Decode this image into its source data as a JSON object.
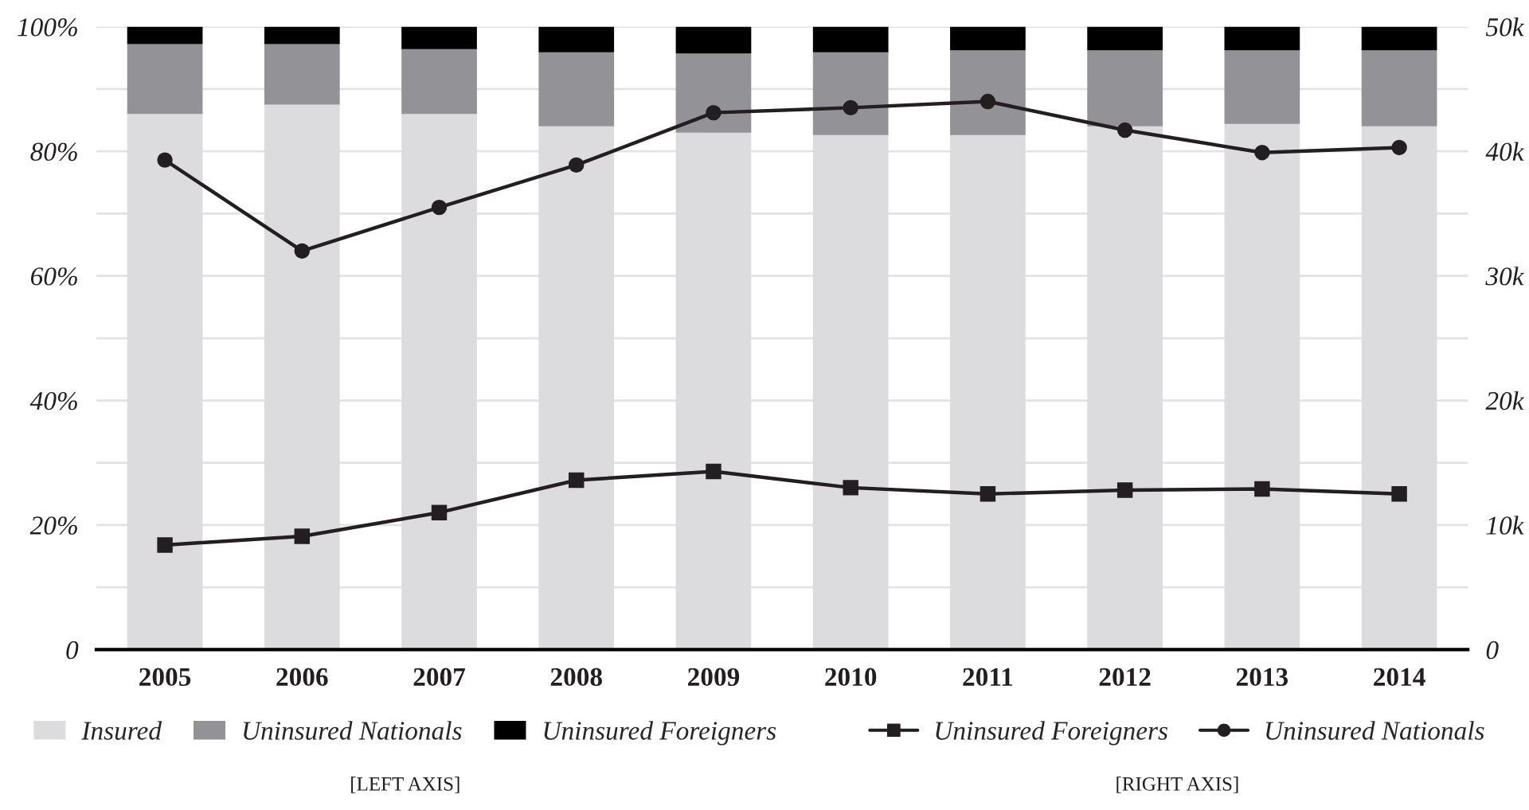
{
  "chart_data": {
    "type": "bar",
    "stacked": true,
    "categories": [
      "2005",
      "2006",
      "2007",
      "2008",
      "2009",
      "2010",
      "2011",
      "2012",
      "2013",
      "2014"
    ],
    "series": [
      {
        "name": "Insured",
        "color": "#dcdcdf",
        "values": [
          86,
          87.5,
          86,
          84,
          83,
          82.6,
          82.6,
          84,
          84.4,
          84
        ]
      },
      {
        "name": "Uninsured Nationals",
        "color": "#939397",
        "values": [
          11.2,
          9.7,
          10.4,
          11.9,
          12.7,
          13.3,
          13.6,
          12.2,
          11.8,
          12.2
        ]
      },
      {
        "name": "Uninsured Foreigners",
        "color": "#000000",
        "values": [
          2.8,
          2.8,
          3.6,
          4.1,
          4.3,
          4.1,
          3.8,
          3.8,
          3.8,
          3.8
        ]
      },
      {
        "name": "Uninsured Foreigners",
        "type": "line",
        "axis": "y2",
        "marker": "square",
        "color": "#231f20",
        "values": [
          8400,
          9100,
          11000,
          13600,
          14300,
          13000,
          12500,
          12800,
          12900,
          12500
        ]
      },
      {
        "name": "Uninsured Nationals",
        "type": "line",
        "axis": "y2",
        "marker": "circle",
        "color": "#231f20",
        "values": [
          39300,
          32000,
          35500,
          38900,
          43100,
          43500,
          44000,
          41700,
          39900,
          40300
        ]
      }
    ],
    "ylim": [
      0,
      100
    ],
    "yticks": [
      {
        "value": 0,
        "label": "0"
      },
      {
        "value": 10,
        "label": null
      },
      {
        "value": 20,
        "label": "20%"
      },
      {
        "value": 30,
        "label": null
      },
      {
        "value": 40,
        "label": "40%"
      },
      {
        "value": 50,
        "label": null
      },
      {
        "value": 60,
        "label": "60%"
      },
      {
        "value": 70,
        "label": null
      },
      {
        "value": 80,
        "label": "80%"
      },
      {
        "value": 90,
        "label": null
      },
      {
        "value": 100,
        "label": "100%"
      }
    ],
    "y2lim": [
      0,
      50000
    ],
    "y2ticks": [
      {
        "value": 0,
        "label": "0"
      },
      {
        "value": 10000,
        "label": "10k"
      },
      {
        "value": 20000,
        "label": "20k"
      },
      {
        "value": 30000,
        "label": "30k"
      },
      {
        "value": 40000,
        "label": "40k"
      },
      {
        "value": 50000,
        "label": "50k"
      }
    ],
    "grid": "y",
    "legend": "bottom",
    "line_style": "solid",
    "annotations": [
      "[LEFT AXIS]",
      "[RIGHT AXIS]"
    ]
  }
}
